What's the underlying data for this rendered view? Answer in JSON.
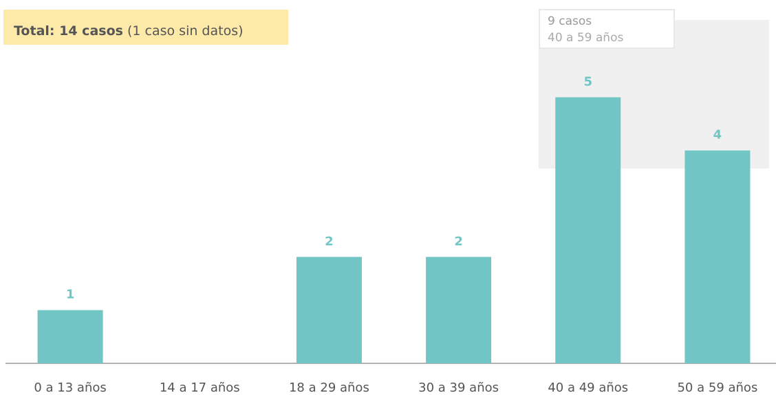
{
  "chart_data": {
    "type": "bar",
    "summary": {
      "bold": "Total: 14 casos",
      "rest": "(1 caso sin datos)"
    },
    "annotation": {
      "title": "9 casos",
      "subtitle": "40 a 59 años"
    },
    "categories": [
      "0 a 13 años",
      "14 a 17 años",
      "18 a 29 años",
      "30 a 39 años",
      "40 a 49 años",
      "50 a 59 años"
    ],
    "values": [
      1,
      0,
      2,
      2,
      5,
      4
    ],
    "value_labels": [
      "1",
      null,
      "2",
      "2",
      "5",
      "4"
    ],
    "color": "#72c5c5",
    "ylim": [
      0,
      6
    ]
  }
}
